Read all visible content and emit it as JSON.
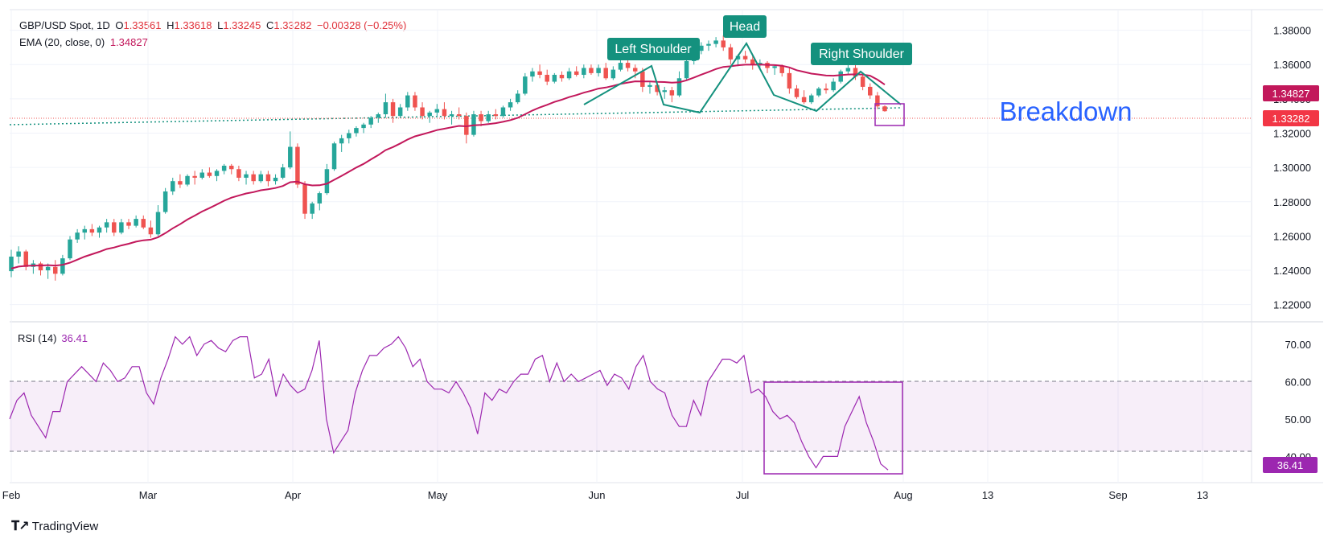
{
  "header": {
    "symbol": "GBP/USD Spot, 1D",
    "open_label": "O",
    "open": "1.33561",
    "high_label": "H",
    "high": "1.33618",
    "low_label": "L",
    "low": "1.33245",
    "close_label": "C",
    "close": "1.33282",
    "change": "−0.00328 (−0.25%)",
    "ema_label": "EMA (20, close, 0)",
    "ema_value": "1.34827"
  },
  "rsi_header": {
    "label": "RSI (14)",
    "value": "36.41"
  },
  "price_badges": {
    "ema": "1.34827",
    "close": "1.33282"
  },
  "rsi_badge": "36.41",
  "annotations": {
    "left_shoulder": "Left Shoulder",
    "head": "Head",
    "right_shoulder": "Right Shoulder",
    "breakdown": "Breakdown"
  },
  "brand": "TradingView",
  "colors": {
    "up": "#26a69a",
    "down": "#ef5350",
    "ema": "#c2185b",
    "rsi": "#9c27b0",
    "pattern": "#14917e",
    "breakdown": "#2962ff"
  },
  "chart_data": [
    {
      "type": "candlestick",
      "series_name": "GBP/USD Spot, 1D",
      "y_ticks": [
        "1.22000",
        "1.24000",
        "1.26000",
        "1.28000",
        "1.30000",
        "1.32000",
        "1.34000",
        "1.36000",
        "1.38000"
      ],
      "ylim": [
        1.21,
        1.392
      ],
      "x_ticks": [
        "Feb",
        "Mar",
        "Apr",
        "May",
        "Jun",
        "Jul",
        "Aug",
        "13",
        "Sep",
        "13"
      ],
      "ohlc": [
        [
          1.2395,
          1.252,
          1.236,
          1.248
        ],
        [
          1.248,
          1.254,
          1.244,
          1.251
        ],
        [
          1.251,
          1.252,
          1.24,
          1.242
        ],
        [
          1.242,
          1.246,
          1.238,
          1.244
        ],
        [
          1.244,
          1.245,
          1.237,
          1.24
        ],
        [
          1.24,
          1.244,
          1.235,
          1.242
        ],
        [
          1.242,
          1.246,
          1.234,
          1.238
        ],
        [
          1.238,
          1.249,
          1.237,
          1.247
        ],
        [
          1.247,
          1.26,
          1.246,
          1.258
        ],
        [
          1.258,
          1.264,
          1.256,
          1.262
        ],
        [
          1.262,
          1.266,
          1.258,
          1.264
        ],
        [
          1.264,
          1.267,
          1.26,
          1.262
        ],
        [
          1.262,
          1.266,
          1.259,
          1.265
        ],
        [
          1.265,
          1.27,
          1.262,
          1.268
        ],
        [
          1.268,
          1.27,
          1.26,
          1.262
        ],
        [
          1.262,
          1.27,
          1.261,
          1.268
        ],
        [
          1.268,
          1.27,
          1.264,
          1.266
        ],
        [
          1.266,
          1.272,
          1.265,
          1.27
        ],
        [
          1.27,
          1.272,
          1.264,
          1.265
        ],
        [
          1.265,
          1.269,
          1.259,
          1.261
        ],
        [
          1.261,
          1.278,
          1.26,
          1.274
        ],
        [
          1.274,
          1.288,
          1.273,
          1.286
        ],
        [
          1.286,
          1.294,
          1.284,
          1.292
        ],
        [
          1.292,
          1.296,
          1.288,
          1.29
        ],
        [
          1.29,
          1.296,
          1.289,
          1.295
        ],
        [
          1.295,
          1.298,
          1.29,
          1.294
        ],
        [
          1.294,
          1.299,
          1.293,
          1.297
        ],
        [
          1.297,
          1.3,
          1.294,
          1.295
        ],
        [
          1.295,
          1.299,
          1.292,
          1.298
        ],
        [
          1.298,
          1.302,
          1.296,
          1.301
        ],
        [
          1.301,
          1.302,
          1.296,
          1.299
        ],
        [
          1.299,
          1.301,
          1.292,
          1.294
        ],
        [
          1.294,
          1.298,
          1.29,
          1.296
        ],
        [
          1.296,
          1.298,
          1.29,
          1.292
        ],
        [
          1.292,
          1.298,
          1.291,
          1.296
        ],
        [
          1.296,
          1.298,
          1.289,
          1.292
        ],
        [
          1.292,
          1.296,
          1.29,
          1.294
        ],
        [
          1.294,
          1.302,
          1.293,
          1.3
        ],
        [
          1.3,
          1.321,
          1.299,
          1.312
        ],
        [
          1.312,
          1.314,
          1.288,
          1.29
        ],
        [
          1.29,
          1.292,
          1.27,
          1.273
        ],
        [
          1.273,
          1.28,
          1.27,
          1.279
        ],
        [
          1.279,
          1.286,
          1.275,
          1.285
        ],
        [
          1.285,
          1.302,
          1.284,
          1.299
        ],
        [
          1.299,
          1.315,
          1.298,
          1.314
        ],
        [
          1.314,
          1.319,
          1.309,
          1.317
        ],
        [
          1.317,
          1.322,
          1.314,
          1.32
        ],
        [
          1.32,
          1.324,
          1.318,
          1.323
        ],
        [
          1.323,
          1.326,
          1.32,
          1.325
        ],
        [
          1.325,
          1.33,
          1.323,
          1.329
        ],
        [
          1.329,
          1.332,
          1.326,
          1.331
        ],
        [
          1.331,
          1.343,
          1.329,
          1.338
        ],
        [
          1.338,
          1.34,
          1.326,
          1.33
        ],
        [
          1.33,
          1.337,
          1.329,
          1.335
        ],
        [
          1.335,
          1.344,
          1.333,
          1.342
        ],
        [
          1.342,
          1.344,
          1.333,
          1.335
        ],
        [
          1.335,
          1.338,
          1.328,
          1.33
        ],
        [
          1.33,
          1.333,
          1.326,
          1.332
        ],
        [
          1.332,
          1.337,
          1.33,
          1.334
        ],
        [
          1.334,
          1.338,
          1.328,
          1.33
        ],
        [
          1.33,
          1.333,
          1.325,
          1.331
        ],
        [
          1.331,
          1.335,
          1.328,
          1.33
        ],
        [
          1.33,
          1.332,
          1.314,
          1.319
        ],
        [
          1.319,
          1.333,
          1.318,
          1.331
        ],
        [
          1.331,
          1.333,
          1.324,
          1.327
        ],
        [
          1.327,
          1.333,
          1.326,
          1.331
        ],
        [
          1.331,
          1.334,
          1.328,
          1.33
        ],
        [
          1.33,
          1.336,
          1.329,
          1.335
        ],
        [
          1.335,
          1.34,
          1.333,
          1.338
        ],
        [
          1.338,
          1.345,
          1.337,
          1.343
        ],
        [
          1.343,
          1.355,
          1.342,
          1.353
        ],
        [
          1.353,
          1.358,
          1.35,
          1.356
        ],
        [
          1.356,
          1.36,
          1.352,
          1.354
        ],
        [
          1.354,
          1.357,
          1.348,
          1.35
        ],
        [
          1.35,
          1.355,
          1.349,
          1.354
        ],
        [
          1.354,
          1.356,
          1.35,
          1.352
        ],
        [
          1.352,
          1.358,
          1.351,
          1.356
        ],
        [
          1.356,
          1.359,
          1.353,
          1.354
        ],
        [
          1.354,
          1.36,
          1.352,
          1.358
        ],
        [
          1.358,
          1.36,
          1.354,
          1.355
        ],
        [
          1.355,
          1.36,
          1.353,
          1.358
        ],
        [
          1.358,
          1.361,
          1.351,
          1.352
        ],
        [
          1.352,
          1.359,
          1.351,
          1.357
        ],
        [
          1.357,
          1.363,
          1.356,
          1.361
        ],
        [
          1.361,
          1.363,
          1.356,
          1.358
        ],
        [
          1.358,
          1.36,
          1.352,
          1.356
        ],
        [
          1.356,
          1.358,
          1.344,
          1.347
        ],
        [
          1.347,
          1.35,
          1.343,
          1.348
        ],
        [
          1.348,
          1.35,
          1.342,
          1.344
        ],
        [
          1.344,
          1.347,
          1.34,
          1.345
        ],
        [
          1.345,
          1.347,
          1.338,
          1.342
        ],
        [
          1.342,
          1.356,
          1.341,
          1.352
        ],
        [
          1.352,
          1.364,
          1.351,
          1.362
        ],
        [
          1.362,
          1.37,
          1.36,
          1.368
        ],
        [
          1.368,
          1.373,
          1.366,
          1.371
        ],
        [
          1.371,
          1.374,
          1.368,
          1.372
        ],
        [
          1.372,
          1.376,
          1.37,
          1.374
        ],
        [
          1.374,
          1.377,
          1.368,
          1.37
        ],
        [
          1.37,
          1.372,
          1.36,
          1.363
        ],
        [
          1.363,
          1.366,
          1.359,
          1.365
        ],
        [
          1.365,
          1.368,
          1.361,
          1.363
        ],
        [
          1.363,
          1.365,
          1.357,
          1.36
        ],
        [
          1.36,
          1.363,
          1.358,
          1.361
        ],
        [
          1.361,
          1.362,
          1.355,
          1.358
        ],
        [
          1.358,
          1.36,
          1.354,
          1.359
        ],
        [
          1.359,
          1.36,
          1.353,
          1.355
        ],
        [
          1.355,
          1.358,
          1.343,
          1.346
        ],
        [
          1.346,
          1.348,
          1.34,
          1.341
        ],
        [
          1.341,
          1.345,
          1.337,
          1.338
        ],
        [
          1.338,
          1.343,
          1.337,
          1.342
        ],
        [
          1.342,
          1.347,
          1.341,
          1.346
        ],
        [
          1.346,
          1.349,
          1.343,
          1.345
        ],
        [
          1.345,
          1.352,
          1.344,
          1.35
        ],
        [
          1.35,
          1.357,
          1.349,
          1.356
        ],
        [
          1.356,
          1.36,
          1.354,
          1.358
        ],
        [
          1.358,
          1.36,
          1.351,
          1.353
        ],
        [
          1.353,
          1.354,
          1.345,
          1.347
        ],
        [
          1.347,
          1.349,
          1.34,
          1.342
        ],
        [
          1.342,
          1.344,
          1.334,
          1.3356
        ],
        [
          1.3356,
          1.3362,
          1.3325,
          1.3328
        ]
      ],
      "ema20": [
        1.241,
        1.2422,
        1.2426,
        1.2428,
        1.2428,
        1.243,
        1.2428,
        1.2432,
        1.2445,
        1.2462,
        1.248,
        1.2494,
        1.2508,
        1.2524,
        1.2533,
        1.2545,
        1.2555,
        1.2567,
        1.2575,
        1.2579,
        1.2593,
        1.2617,
        1.2645,
        1.2669,
        1.2696,
        1.2719,
        1.2743,
        1.2763,
        1.2784,
        1.2806,
        1.2824,
        1.2836,
        1.2848,
        1.2856,
        1.2867,
        1.2873,
        1.288,
        1.2892,
        1.2914,
        1.2917,
        1.2902,
        1.2895,
        1.2896,
        1.2905,
        1.2928,
        1.2951,
        1.2975,
        1.2999,
        1.3021,
        1.3047,
        1.3072,
        1.3101,
        1.3119,
        1.314,
        1.3163,
        1.3181,
        1.3193,
        1.3205,
        1.3218,
        1.3226,
        1.3234,
        1.3242,
        1.324,
        1.3246,
        1.3248,
        1.3253,
        1.3258,
        1.3266,
        1.3276,
        1.3289,
        1.331,
        1.3332,
        1.335,
        1.3365,
        1.3382,
        1.3395,
        1.341,
        1.3422,
        1.3436,
        1.3447,
        1.346,
        1.3466,
        1.3476,
        1.3487,
        1.3495,
        1.3502,
        1.3501,
        1.3501,
        1.3499,
        1.3498,
        1.3494,
        1.3497,
        1.3508,
        1.3524,
        1.3541,
        1.3557,
        1.3574,
        1.3586,
        1.359,
        1.3596,
        1.3599,
        1.3599,
        1.36,
        1.3598,
        1.3597,
        1.3593,
        1.3583,
        1.3567,
        1.3557,
        1.3547,
        1.3542,
        1.3536,
        1.3535,
        1.3538,
        1.3542,
        1.3543,
        1.3541,
        1.3535,
        1.3512,
        1.3483
      ]
    },
    {
      "type": "line",
      "series_name": "RSI (14)",
      "y_ticks": [
        "40.00",
        "50.00",
        "60.00",
        "70.00"
      ],
      "ylim": [
        33,
        76
      ],
      "bands": [
        40,
        60
      ],
      "values": [
        50,
        55,
        57,
        51,
        48,
        45,
        52,
        52,
        60,
        62,
        64,
        62,
        60,
        65,
        63,
        60,
        61,
        64,
        64,
        57,
        54,
        61,
        66,
        72,
        70,
        72,
        67,
        70,
        71,
        69,
        68,
        71,
        72,
        72,
        61,
        62,
        66,
        56,
        62,
        59,
        57,
        58,
        63,
        71,
        50,
        41,
        44,
        47,
        57,
        63,
        67,
        67,
        69,
        70,
        72,
        69,
        64,
        66,
        60,
        58,
        58,
        57,
        60,
        57,
        53,
        46,
        57,
        55,
        58,
        57,
        60,
        62,
        62,
        66,
        67,
        60,
        65,
        60,
        62,
        60,
        61,
        62,
        63,
        59,
        62,
        61,
        58,
        64,
        67,
        60,
        58,
        57,
        51,
        48,
        48,
        55,
        51,
        60,
        63,
        66,
        66,
        65,
        67,
        57,
        58,
        56,
        52,
        50,
        51,
        49,
        44,
        40,
        37,
        40,
        40,
        40,
        48,
        52,
        56,
        49,
        44,
        38,
        36.4
      ]
    }
  ]
}
